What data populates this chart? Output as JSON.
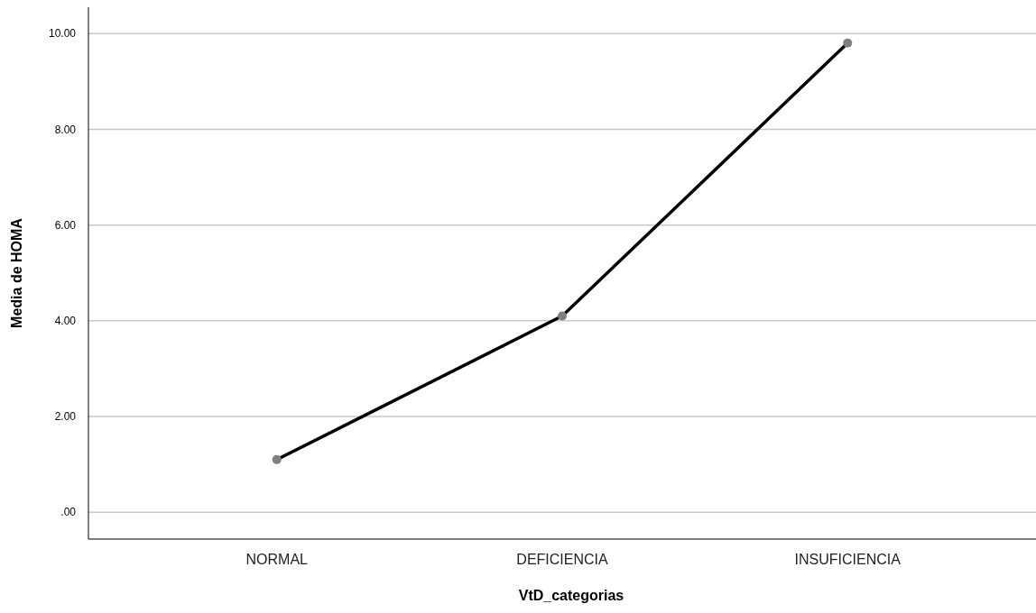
{
  "chart_data": {
    "type": "line",
    "xlabel": "VtD_categorias",
    "ylabel": "Media de HOMA",
    "categories": [
      "NORMAL",
      "DEFICIENCIA",
      "INSUFICIENCIA"
    ],
    "series": [
      {
        "color": "#000000",
        "values": [
          1.1,
          4.1,
          9.8
        ]
      }
    ],
    "ylim": [
      -0.56,
      10.55
    ],
    "yticks": [
      {
        "value": 0,
        "label": ".00"
      },
      {
        "value": 2,
        "label": "2.00"
      },
      {
        "value": 4,
        "label": "4.00"
      },
      {
        "value": 6,
        "label": "6.00"
      },
      {
        "value": 8,
        "label": "8.00"
      },
      {
        "value": 10,
        "label": "10.00"
      }
    ],
    "grid": "y",
    "marker": "circle"
  }
}
